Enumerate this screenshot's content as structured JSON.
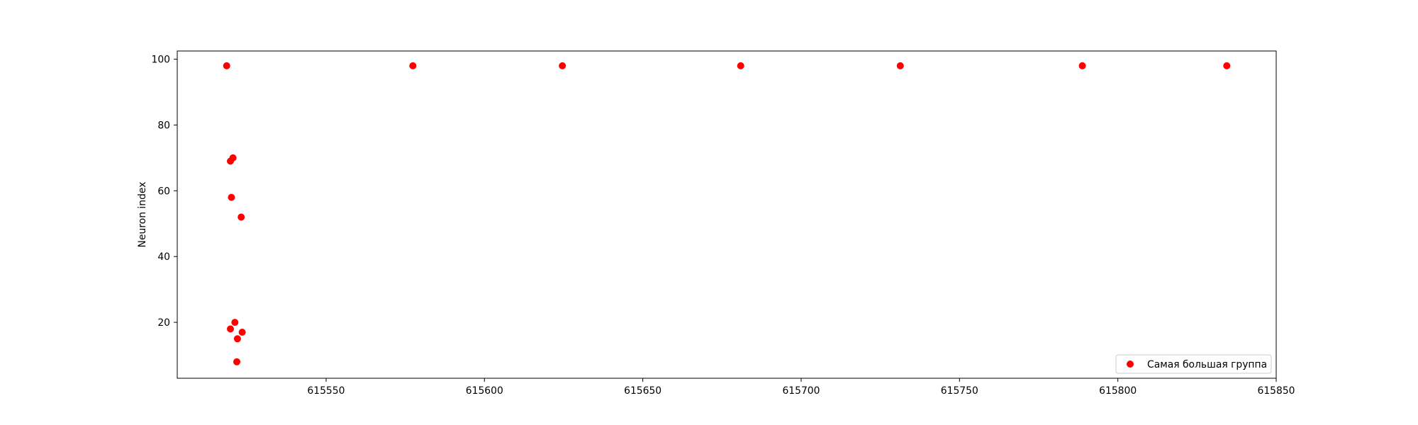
{
  "chart_data": {
    "type": "scatter",
    "title": "",
    "xlabel": "",
    "ylabel": "Neuron index",
    "xlim": [
      615503,
      615850
    ],
    "ylim": [
      3,
      102.5
    ],
    "x_ticks": [
      615550,
      615600,
      615650,
      615700,
      615750,
      615800,
      615850
    ],
    "x_tick_labels": [
      "615550",
      "615600",
      "615650",
      "615700",
      "615750",
      "615800",
      "615850"
    ],
    "y_ticks": [
      20,
      40,
      60,
      80,
      100
    ],
    "y_tick_labels": [
      "20",
      "40",
      "60",
      "80",
      "100"
    ],
    "grid": false,
    "legend_position": "lower-right",
    "series": [
      {
        "name": "Самая большая группа",
        "color": "#ff0000",
        "marker": "circle",
        "points": [
          {
            "x": 615518.6,
            "y": 98
          },
          {
            "x": 615577.4,
            "y": 98
          },
          {
            "x": 615624.6,
            "y": 98
          },
          {
            "x": 615680.9,
            "y": 98
          },
          {
            "x": 615731.3,
            "y": 98
          },
          {
            "x": 615788.8,
            "y": 98
          },
          {
            "x": 615834.4,
            "y": 98
          },
          {
            "x": 615519.8,
            "y": 69
          },
          {
            "x": 615520.6,
            "y": 70
          },
          {
            "x": 615520.1,
            "y": 58
          },
          {
            "x": 615523.2,
            "y": 52
          },
          {
            "x": 615519.8,
            "y": 18
          },
          {
            "x": 615521.2,
            "y": 20
          },
          {
            "x": 615522.0,
            "y": 15
          },
          {
            "x": 615523.5,
            "y": 17
          },
          {
            "x": 615521.8,
            "y": 8
          }
        ]
      }
    ]
  }
}
